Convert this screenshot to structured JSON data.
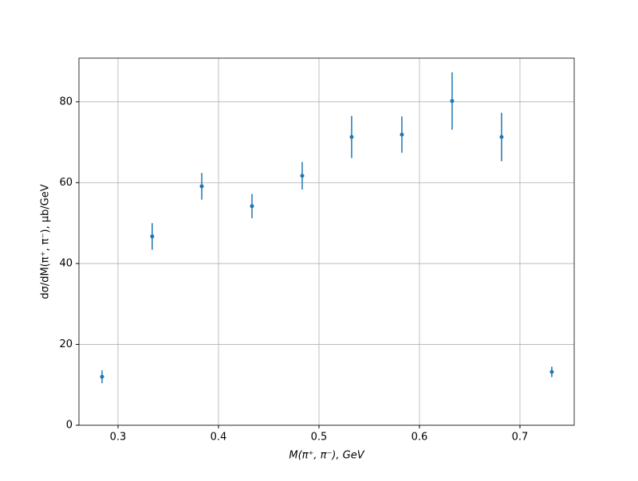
{
  "chart_data": {
    "type": "errorbar",
    "x_label": "M(π⁺, π⁻), GeV",
    "y_label": "dσ/dM(π⁺, π⁻), μb/GeV",
    "x": [
      0.2841,
      0.334,
      0.3833,
      0.4333,
      0.4833,
      0.5325,
      0.5825,
      0.6325,
      0.6817,
      0.7317
    ],
    "values": [
      12.0,
      46.7,
      59.1,
      54.2,
      61.7,
      71.3,
      71.9,
      80.2,
      71.3,
      13.2
    ],
    "errors": [
      1.6,
      3.3,
      3.3,
      3.0,
      3.4,
      5.2,
      4.5,
      7.1,
      6.0,
      1.3
    ],
    "color": "#1f77b4",
    "xlim": [
      0.2611,
      0.754
    ],
    "ylim": [
      0,
      90.8
    ],
    "xticks": [
      0.3,
      0.4,
      0.5,
      0.6,
      0.7
    ],
    "yticks": [
      0,
      20,
      40,
      60,
      80
    ],
    "grid": true
  }
}
